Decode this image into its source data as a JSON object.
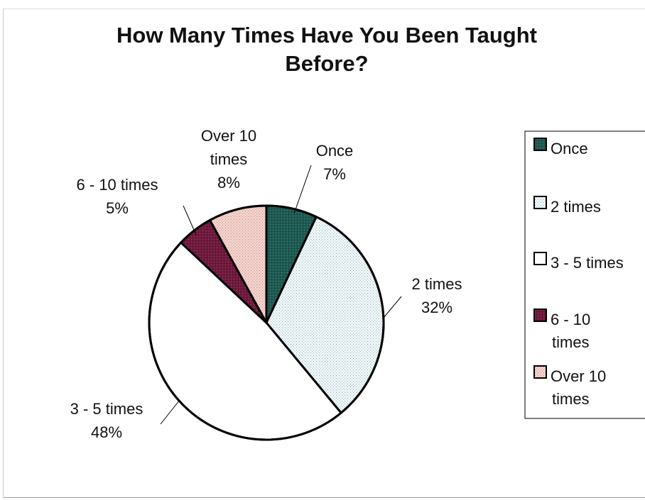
{
  "chart_data": {
    "type": "pie",
    "title_lines": [
      "How Many Times Have You Been Taught",
      "Before?"
    ],
    "slices": [
      {
        "name": "Once",
        "value": 7,
        "label_lines": [
          "Once",
          "7%"
        ],
        "legend_lines": [
          "Once"
        ],
        "color": "#1e5a52",
        "pattern": "dark-teal"
      },
      {
        "name": "2 times",
        "value": 32,
        "label_lines": [
          "2 times",
          "32%"
        ],
        "legend_lines": [
          "2 times"
        ],
        "color": "#eef6f8",
        "pattern": "light-dots"
      },
      {
        "name": "3 - 5 times",
        "value": 48,
        "label_lines": [
          "3 - 5 times",
          "48%"
        ],
        "legend_lines": [
          "3 - 5 times"
        ],
        "color": "#ffffff",
        "pattern": "white"
      },
      {
        "name": "6 - 10 times",
        "value": 5,
        "label_lines": [
          "6 - 10 times",
          "5%"
        ],
        "legend_lines": [
          "6 - 10",
          "times"
        ],
        "color": "#6e1a3c",
        "pattern": "dark-maroon"
      },
      {
        "name": "Over 10 times",
        "value": 8,
        "label_lines": [
          "Over 10",
          "times",
          "8%"
        ],
        "legend_lines": [
          "Over 10",
          "times"
        ],
        "color": "#f3d2cc",
        "pattern": "pink-dots"
      }
    ],
    "start_angle_deg": 0,
    "direction": "clockwise",
    "legend_position": "right"
  }
}
